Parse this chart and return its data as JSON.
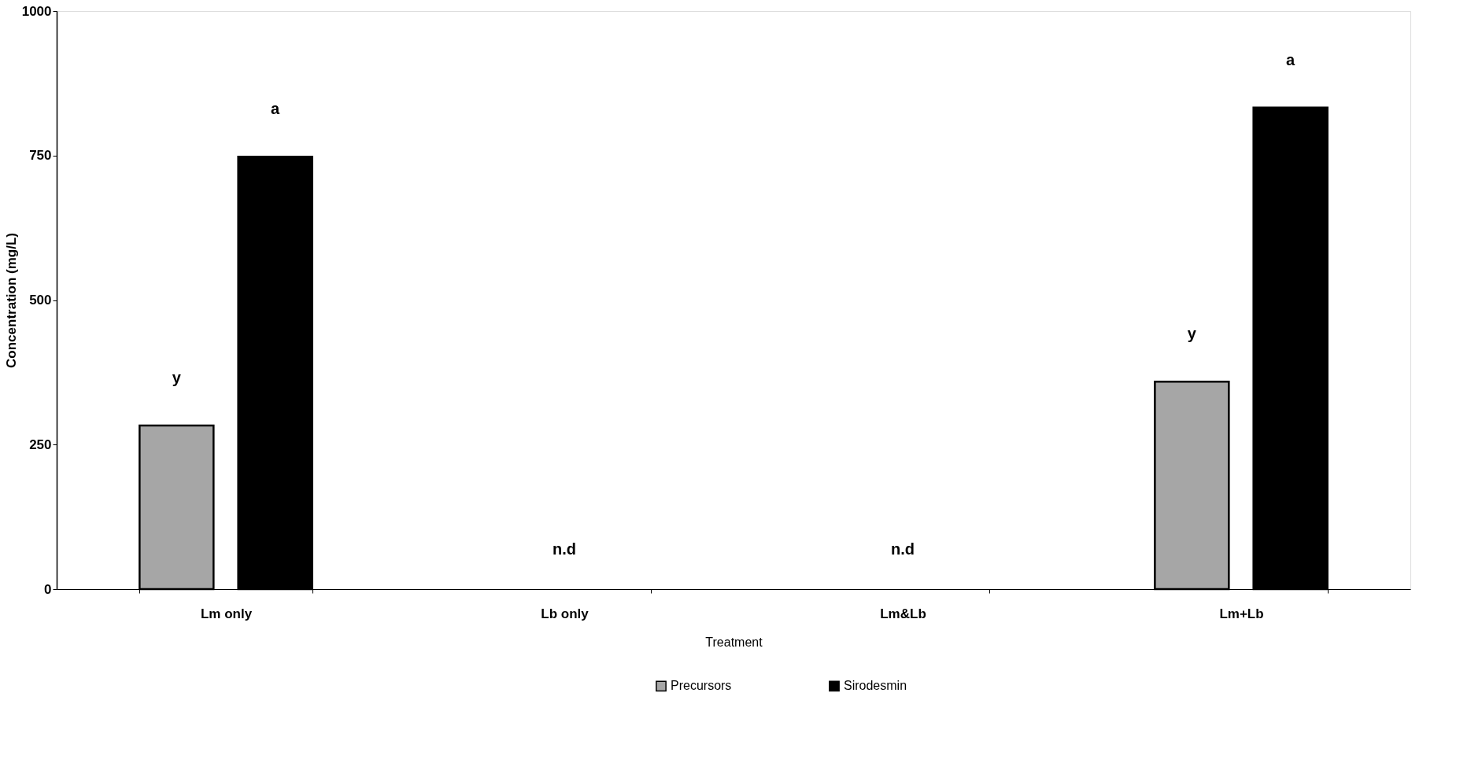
{
  "chart_data": {
    "type": "bar",
    "xlabel": "Treatment",
    "ylabel": "Concentration (mg/L)",
    "categories": [
      "Lm only",
      "Lb only",
      "Lm&Lb",
      "Lm+Lb"
    ],
    "series": [
      {
        "name": "Precursors",
        "color": "#a6a6a6",
        "values": [
          283,
          null,
          null,
          359
        ]
      },
      {
        "name": "Sirodesmin",
        "color": "#000000",
        "values": [
          748,
          null,
          null,
          833
        ]
      }
    ],
    "ylim": [
      0,
      1000
    ],
    "yticks": [
      0,
      250,
      500,
      750,
      1000
    ],
    "grid": false,
    "legend": "bottom",
    "annotations": [
      "y",
      "a",
      "n.d",
      "n.d",
      "y",
      "a"
    ]
  }
}
